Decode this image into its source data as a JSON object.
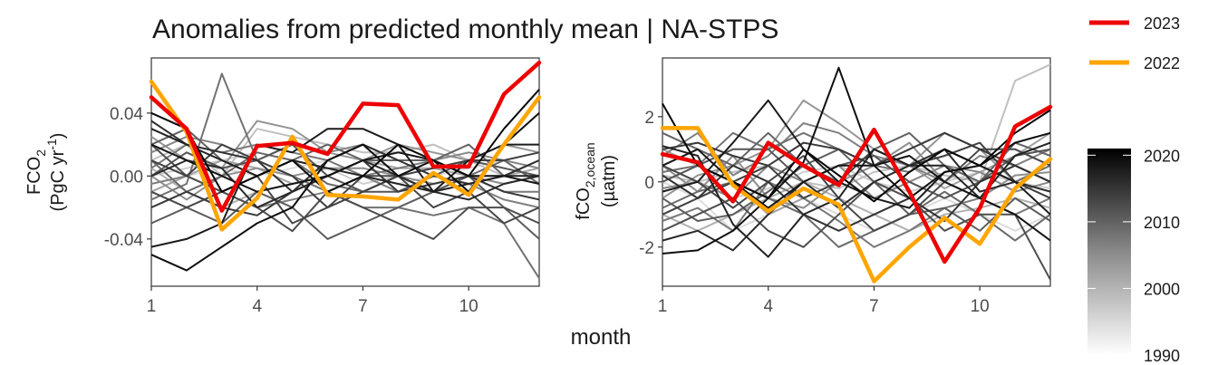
{
  "title": "Anomalies from predicted monthly mean | NA-STPS",
  "colors": {
    "y2023": "#ee0000",
    "y2022": "#ffa500",
    "grid": "#000000"
  },
  "legend": {
    "series": [
      {
        "label": "2023",
        "color": "#ee0000"
      },
      {
        "label": "2022",
        "color": "#ffa500"
      }
    ],
    "colorbar": {
      "ticks": [
        "2020",
        "2010",
        "2000",
        "1990"
      ],
      "range": [
        1990,
        2021
      ]
    }
  },
  "chart_data": [
    {
      "type": "line",
      "xlabel": "month",
      "ylabel_main": "FCO",
      "ylabel_sub": "2",
      "ylabel_line2_pre": "(PgC yr",
      "ylabel_line2_sup": "-1",
      "ylabel_line2_post": ")",
      "xlim": [
        1,
        12
      ],
      "ylim": [
        -0.07,
        0.075
      ],
      "x_ticks": [
        "1",
        "4",
        "7",
        "10"
      ],
      "y_ticks": [
        "0.04",
        "0.00",
        "-0.04"
      ],
      "y_tick_values": [
        0.04,
        0.0,
        -0.04
      ],
      "x": [
        1,
        2,
        3,
        4,
        5,
        6,
        7,
        8,
        9,
        10,
        11,
        12
      ],
      "series": [
        {
          "name": "2023",
          "values": [
            0.05,
            0.03,
            -0.022,
            0.019,
            0.021,
            0.014,
            0.046,
            0.045,
            0.006,
            0.006,
            0.052,
            0.072
          ]
        },
        {
          "name": "2022",
          "values": [
            0.06,
            0.028,
            -0.034,
            -0.014,
            0.025,
            -0.012,
            -0.013,
            -0.015,
            0.002,
            -0.012,
            0.02,
            0.05
          ]
        }
      ],
      "background_lines": [
        {
          "year": 2020,
          "values": [
            0.04,
            0.03,
            -0.01,
            0.0,
            0.01,
            -0.01,
            0.0,
            0.02,
            0.01,
            0.0,
            0.03,
            0.055
          ]
        },
        {
          "year": 2019,
          "values": [
            -0.05,
            -0.06,
            -0.045,
            -0.03,
            -0.02,
            0.01,
            0.02,
            0.0,
            0.01,
            -0.01,
            0.02,
            0.04
          ]
        },
        {
          "year": 2018,
          "values": [
            0.02,
            0.01,
            0.0,
            -0.01,
            -0.005,
            0.0,
            0.01,
            0.015,
            0.01,
            0.0,
            0.0,
            -0.005
          ]
        },
        {
          "year": 2017,
          "values": [
            -0.045,
            -0.04,
            -0.03,
            0.02,
            0.015,
            0.03,
            0.03,
            0.02,
            -0.01,
            0.01,
            0.02,
            0.02
          ]
        },
        {
          "year": 2016,
          "values": [
            0.03,
            0.02,
            0.01,
            0.0,
            0.01,
            0.005,
            0.0,
            -0.005,
            -0.01,
            -0.005,
            0.0,
            0.0
          ]
        },
        {
          "year": 2015,
          "values": [
            0.0,
            0.01,
            0.005,
            -0.02,
            -0.01,
            0.0,
            0.01,
            0.0,
            -0.01,
            -0.015,
            -0.005,
            0.0
          ]
        },
        {
          "year": 2014,
          "values": [
            0.035,
            0.02,
            0.015,
            0.01,
            -0.01,
            0.01,
            0.02,
            0.01,
            0.0,
            -0.005,
            0.0,
            0.01
          ]
        },
        {
          "year": 2013,
          "values": [
            -0.02,
            -0.01,
            -0.02,
            -0.025,
            -0.01,
            0.0,
            0.01,
            -0.01,
            -0.005,
            0.0,
            -0.01,
            -0.015
          ]
        },
        {
          "year": 2012,
          "values": [
            0.01,
            0.0,
            0.02,
            0.01,
            0.0,
            -0.02,
            -0.01,
            0.0,
            0.005,
            0.01,
            0.01,
            0.015
          ]
        },
        {
          "year": 2011,
          "values": [
            -0.01,
            -0.02,
            -0.01,
            0.0,
            -0.03,
            -0.02,
            0.0,
            0.0,
            -0.02,
            -0.01,
            -0.03,
            -0.02
          ]
        },
        {
          "year": 2010,
          "values": [
            0.02,
            0.0,
            -0.01,
            -0.02,
            -0.035,
            -0.01,
            -0.02,
            -0.03,
            -0.04,
            -0.02,
            -0.02,
            -0.03
          ]
        },
        {
          "year": 2009,
          "values": [
            0.0,
            0.015,
            0.005,
            0.01,
            0.02,
            0.0,
            -0.01,
            -0.01,
            0.0,
            0.01,
            0.005,
            0.0
          ]
        },
        {
          "year": 2008,
          "values": [
            -0.03,
            -0.02,
            -0.03,
            -0.01,
            -0.02,
            -0.04,
            -0.03,
            -0.02,
            -0.01,
            0.0,
            -0.02,
            -0.04
          ]
        },
        {
          "year": 2007,
          "values": [
            0.02,
            0.03,
            0.01,
            0.0,
            0.01,
            0.02,
            0.01,
            0.01,
            0.01,
            0.02,
            0.0,
            0.01
          ]
        },
        {
          "year": 2006,
          "values": [
            0.01,
            -0.01,
            0.0,
            0.015,
            0.01,
            -0.005,
            -0.01,
            0.0,
            -0.01,
            0.0,
            0.01,
            -0.005
          ]
        },
        {
          "year": 2005,
          "values": [
            -0.015,
            -0.005,
            0.065,
            0.01,
            0.0,
            -0.01,
            -0.02,
            -0.02,
            -0.025,
            -0.02,
            -0.03,
            -0.065
          ]
        },
        {
          "year": 2004,
          "values": [
            0.005,
            0.02,
            0.015,
            0.02,
            0.015,
            0.01,
            0.0,
            0.005,
            0.01,
            0.0,
            -0.01,
            -0.01
          ]
        },
        {
          "year": 2003,
          "values": [
            -0.005,
            0.0,
            -0.01,
            -0.02,
            -0.015,
            -0.01,
            0.0,
            -0.01,
            0.0,
            -0.005,
            -0.015,
            -0.02
          ]
        },
        {
          "year": 2002,
          "values": [
            0.015,
            0.025,
            0.02,
            0.01,
            0.02,
            0.015,
            0.02,
            0.01,
            0.01,
            0.015,
            0.01,
            0.005
          ]
        },
        {
          "year": 2001,
          "values": [
            0.0,
            -0.015,
            0.0,
            0.005,
            0.0,
            0.005,
            0.005,
            0.0,
            -0.005,
            0.0,
            -0.005,
            0.0
          ]
        },
        {
          "year": 2000,
          "values": [
            0.025,
            0.01,
            0.005,
            0.035,
            0.03,
            0.015,
            0.01,
            0.02,
            0.015,
            0.01,
            0.02,
            0.015
          ]
        },
        {
          "year": 1998,
          "values": [
            -0.01,
            0.0,
            0.01,
            0.005,
            -0.005,
            0.0,
            0.01,
            0.005,
            0.005,
            0.0,
            0.0,
            0.005
          ]
        },
        {
          "year": 1996,
          "values": [
            0.005,
            -0.01,
            -0.02,
            -0.01,
            -0.005,
            0.0,
            0.01,
            0.0,
            -0.01,
            0.0,
            -0.005,
            0.0
          ]
        },
        {
          "year": 1994,
          "values": [
            0.01,
            0.02,
            0.0,
            0.03,
            0.025,
            0.02,
            0.015,
            0.015,
            0.02,
            0.01,
            0.0,
            0.01
          ]
        },
        {
          "year": 1992,
          "values": [
            0.0,
            0.005,
            0.01,
            0.015,
            0.01,
            0.005,
            -0.005,
            0.0,
            0.005,
            0.01,
            0.005,
            0.0
          ]
        },
        {
          "year": 1990,
          "values": [
            -0.005,
            0.0,
            0.005,
            0.0,
            0.005,
            0.01,
            0.0,
            -0.005,
            0.0,
            0.005,
            0.01,
            0.005
          ]
        }
      ]
    },
    {
      "type": "line",
      "xlabel": "month",
      "ylabel_main": "fCO",
      "ylabel_sub": "2,ocean",
      "ylabel_line2_pre": "(µatm)",
      "ylabel_line2_sup": "",
      "ylabel_line2_post": "",
      "xlim": [
        1,
        12
      ],
      "ylim": [
        -3.2,
        3.8
      ],
      "x_ticks": [
        "1",
        "4",
        "7",
        "10"
      ],
      "y_ticks": [
        "2",
        "0",
        "-2"
      ],
      "y_tick_values": [
        2,
        0,
        -2
      ],
      "x": [
        1,
        2,
        3,
        4,
        5,
        6,
        7,
        8,
        9,
        10,
        11,
        12
      ],
      "series": [
        {
          "name": "2023",
          "values": [
            0.85,
            0.6,
            -0.6,
            1.2,
            0.5,
            -0.1,
            1.6,
            -0.3,
            -2.45,
            -0.8,
            1.7,
            2.3
          ]
        },
        {
          "name": "2022",
          "values": [
            1.65,
            1.65,
            -0.1,
            -0.9,
            -0.2,
            -0.7,
            -3.05,
            -2.0,
            -1.1,
            -1.9,
            -0.2,
            0.7
          ]
        }
      ],
      "background_lines": [
        {
          "year": 2020,
          "values": [
            2.4,
            0.5,
            0.0,
            -0.5,
            1.0,
            0.2,
            -0.6,
            0.3,
            1.0,
            0.5,
            1.5,
            2.2
          ]
        },
        {
          "year": 2019,
          "values": [
            -2.2,
            -2.1,
            -1.5,
            -0.5,
            0.6,
            3.5,
            0.5,
            -0.5,
            0.3,
            0.5,
            1.2,
            1.5
          ]
        },
        {
          "year": 2018,
          "values": [
            0.5,
            1.0,
            0.0,
            -0.8,
            0.0,
            0.5,
            0.5,
            0.8,
            0.0,
            -0.5,
            -1.0,
            -1.8
          ]
        },
        {
          "year": 2017,
          "values": [
            -0.3,
            0.0,
            1.2,
            2.5,
            1.0,
            0.0,
            -0.5,
            -0.8,
            0.3,
            0.5,
            0.0,
            -1.0
          ]
        },
        {
          "year": 2016,
          "values": [
            1.1,
            0.8,
            -1.3,
            -2.3,
            -1.0,
            -0.5,
            1.0,
            0.5,
            0.5,
            -0.5,
            0.8,
            1.2
          ]
        },
        {
          "year": 2015,
          "values": [
            -1.8,
            -1.5,
            -2.1,
            -1.0,
            0.0,
            -0.8,
            0.0,
            0.5,
            1.0,
            -0.3,
            0.0,
            -0.3
          ]
        },
        {
          "year": 2014,
          "values": [
            0.2,
            -0.5,
            0.5,
            0.0,
            -1.0,
            -1.5,
            -1.0,
            -0.5,
            -1.2,
            0.0,
            0.5,
            0.0
          ]
        },
        {
          "year": 2013,
          "values": [
            1.0,
            1.2,
            0.8,
            0.5,
            1.2,
            1.0,
            0.5,
            1.0,
            1.5,
            1.0,
            0.5,
            0.0
          ]
        },
        {
          "year": 2012,
          "values": [
            -1.0,
            -0.5,
            0.0,
            0.5,
            -0.5,
            0.0,
            1.0,
            0.5,
            0.8,
            1.2,
            0.0,
            -0.5
          ]
        },
        {
          "year": 2011,
          "values": [
            0.5,
            0.0,
            -0.8,
            0.0,
            0.8,
            -0.5,
            -1.5,
            -1.0,
            0.0,
            1.0,
            1.0,
            0.5
          ]
        },
        {
          "year": 2010,
          "values": [
            -1.5,
            -1.0,
            -0.5,
            -1.5,
            -2.0,
            -1.0,
            0.0,
            -0.5,
            -1.5,
            -1.0,
            -1.0,
            -3.0
          ]
        },
        {
          "year": 2009,
          "values": [
            0.0,
            0.5,
            1.0,
            1.0,
            0.0,
            0.5,
            0.8,
            0.0,
            -0.5,
            0.0,
            0.8,
            1.0
          ]
        },
        {
          "year": 2008,
          "values": [
            -0.5,
            -1.2,
            -1.0,
            -0.3,
            0.5,
            1.0,
            0.0,
            -1.0,
            -0.8,
            -1.5,
            -0.5,
            -1.2
          ]
        },
        {
          "year": 2007,
          "values": [
            1.5,
            1.0,
            0.5,
            1.5,
            0.5,
            0.0,
            1.0,
            1.5,
            0.5,
            0.0,
            1.2,
            0.8
          ]
        },
        {
          "year": 2006,
          "values": [
            -0.8,
            -0.3,
            0.0,
            -0.5,
            -1.0,
            -2.0,
            -1.5,
            -1.0,
            -0.3,
            -1.0,
            -1.8,
            -1.0
          ]
        },
        {
          "year": 2005,
          "values": [
            0.3,
            0.5,
            1.5,
            1.0,
            1.5,
            1.0,
            0.5,
            0.3,
            1.0,
            0.5,
            0.0,
            0.5
          ]
        },
        {
          "year": 2004,
          "values": [
            -1.2,
            -0.8,
            -1.5,
            0.0,
            -0.5,
            -1.2,
            -2.0,
            -1.5,
            -0.8,
            -0.5,
            -1.0,
            -0.5
          ]
        },
        {
          "year": 2003,
          "values": [
            0.8,
            1.5,
            0.2,
            0.8,
            1.8,
            1.5,
            0.8,
            0.5,
            0.0,
            0.8,
            0.5,
            1.0
          ]
        },
        {
          "year": 2002,
          "values": [
            -0.2,
            0.0,
            -0.5,
            0.5,
            0.0,
            0.5,
            -0.5,
            0.0,
            0.5,
            0.3,
            -0.3,
            0.0
          ]
        },
        {
          "year": 2001,
          "values": [
            0.5,
            -0.3,
            0.8,
            -0.5,
            -0.8,
            0.0,
            0.5,
            1.2,
            0.0,
            -0.5,
            0.2,
            0.3
          ]
        },
        {
          "year": 2000,
          "values": [
            -0.5,
            0.2,
            0.5,
            1.0,
            2.5,
            1.8,
            1.0,
            0.5,
            1.5,
            1.0,
            0.0,
            0.5
          ]
        },
        {
          "year": 1998,
          "values": [
            1.0,
            0.5,
            0.0,
            -1.0,
            -0.5,
            0.0,
            1.0,
            0.5,
            -0.2,
            0.3,
            0.8,
            1.5
          ]
        },
        {
          "year": 1996,
          "values": [
            -1.0,
            -1.5,
            -1.0,
            -0.5,
            0.0,
            -0.5,
            -1.0,
            -1.5,
            -1.0,
            -0.8,
            -0.5,
            -0.8
          ]
        },
        {
          "year": 1994,
          "values": [
            0.2,
            0.0,
            0.3,
            0.5,
            0.0,
            -0.2,
            0.3,
            0.5,
            0.2,
            0.0,
            3.1,
            3.6
          ]
        },
        {
          "year": 1992,
          "values": [
            -0.3,
            0.0,
            -0.5,
            -0.2,
            0.3,
            0.5,
            0.0,
            -0.3,
            0.0,
            0.3,
            0.0,
            -0.2
          ]
        },
        {
          "year": 1990,
          "values": [
            0.0,
            -0.5,
            -1.5,
            -1.0,
            -0.5,
            -1.0,
            -1.5,
            -1.0,
            -0.5,
            -1.0,
            -1.5,
            -1.0
          ]
        }
      ]
    }
  ]
}
